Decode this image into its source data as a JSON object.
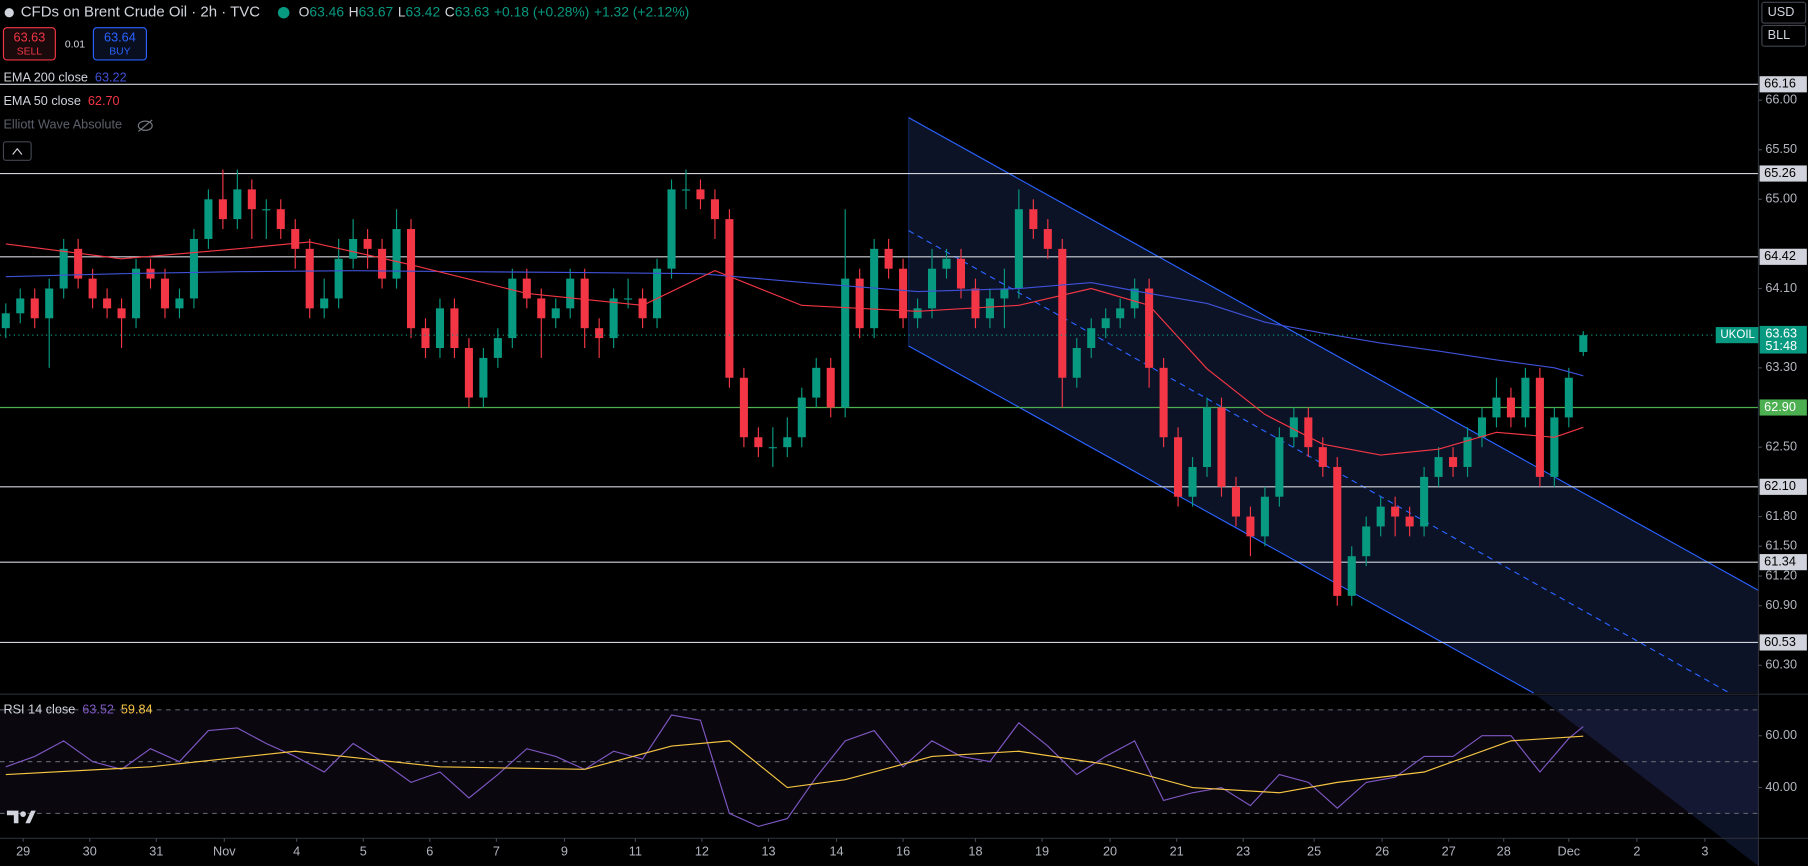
{
  "header": {
    "title": "CFDs on Brent Crude Oil · 2h · TVC",
    "ohlc": [
      {
        "k": "O",
        "v": "63.46"
      },
      {
        "k": "H",
        "v": "63.67"
      },
      {
        "k": "L",
        "v": "63.42"
      },
      {
        "k": "C",
        "v": "63.63"
      }
    ],
    "change": "+0.18 (+0.28%)",
    "change_period": "+1.32 (+2.12%)",
    "sell_price": "63.63",
    "sell": "SELL",
    "spread": "0.01",
    "buy_price": "63.64",
    "buy": "BUY",
    "indicators": [
      {
        "name": "EMA 200 close",
        "value": "63.22",
        "color": "#3f51d8"
      },
      {
        "name": "EMA 50 close",
        "value": "62.70",
        "color": "#f23645"
      },
      {
        "name": "Elliott Wave Absolute"
      }
    ],
    "currency": "USD",
    "unit": "BLL",
    "symbol": "UKOIL",
    "countdown": "51:48"
  },
  "chart_data": [
    {
      "type": "candlestick",
      "title": "CFDs on Brent Crude Oil",
      "up_color": "#089981",
      "down_color": "#f23645",
      "xlim": [
        -0.4,
        121.1
      ],
      "ylim": [
        60.02,
        67.01
      ],
      "yticks": [
        {
          "value": 66,
          "label": "66.00"
        },
        {
          "value": 65.5,
          "label": "65.50"
        },
        {
          "value": 65,
          "label": "65.00"
        },
        {
          "value": 64.1,
          "label": "64.10"
        },
        {
          "value": 63.3,
          "label": "63.30"
        },
        {
          "value": 62.5,
          "label": "62.50"
        },
        {
          "value": 61.8,
          "label": "61.80"
        },
        {
          "value": 61.5,
          "label": "61.50"
        },
        {
          "value": 61.2,
          "label": "61.20"
        },
        {
          "value": 60.9,
          "label": "60.90"
        },
        {
          "value": 60.3,
          "label": "60.30"
        }
      ],
      "xticks": [
        {
          "value": 1.2,
          "label": "29"
        },
        {
          "value": 5.8,
          "label": "30"
        },
        {
          "value": 10.4,
          "label": "31"
        },
        {
          "value": 15.1,
          "label": "Nov"
        },
        {
          "value": 20.1,
          "label": "4"
        },
        {
          "value": 24.7,
          "label": "5"
        },
        {
          "value": 29.3,
          "label": "6"
        },
        {
          "value": 33.9,
          "label": "7"
        },
        {
          "value": 38.6,
          "label": "9"
        },
        {
          "value": 43.5,
          "label": "11"
        },
        {
          "value": 48.1,
          "label": "12"
        },
        {
          "value": 52.7,
          "label": "13"
        },
        {
          "value": 57.4,
          "label": "14"
        },
        {
          "value": 62,
          "label": "16"
        },
        {
          "value": 67,
          "label": "18"
        },
        {
          "value": 71.6,
          "label": "19"
        },
        {
          "value": 76.3,
          "label": "20"
        },
        {
          "value": 80.9,
          "label": "21"
        },
        {
          "value": 85.5,
          "label": "23"
        },
        {
          "value": 90.4,
          "label": "25"
        },
        {
          "value": 95.1,
          "label": "26"
        },
        {
          "value": 99.7,
          "label": "27"
        },
        {
          "value": 103.5,
          "label": "28"
        },
        {
          "value": 108,
          "label": "Dec"
        },
        {
          "value": 112.7,
          "label": "2"
        },
        {
          "value": 117.4,
          "label": "3"
        }
      ],
      "levels": [
        66.16,
        65.26,
        64.42,
        {
          "value": 62.9,
          "label": "62.90"
        },
        {
          "value": 62.1,
          "label": "62.10"
        },
        61.34,
        60.53
      ],
      "level_colors": [
        "#d1d4dc",
        "#d1d4dc",
        "#d1d4dc",
        "#4caf50",
        "#d1d4dc",
        "#d1d4dc",
        "#d1d4dc"
      ],
      "last_price": 63.63,
      "open": [
        63.7,
        63.85,
        64.0,
        63.8,
        64.1,
        64.5,
        64.2,
        64.0,
        63.9,
        63.8,
        64.3,
        64.2,
        63.9,
        64.0,
        64.6,
        65.0,
        64.8,
        65.1,
        64.9,
        64.9,
        64.7,
        64.5,
        63.9,
        64.0,
        64.4,
        64.6,
        64.5,
        64.2,
        64.7,
        63.7,
        63.5,
        63.9,
        63.5,
        63.0,
        63.4,
        63.6,
        64.2,
        64.0,
        63.8,
        63.9,
        64.2,
        63.7,
        63.6,
        64.0,
        64.0,
        63.8,
        64.3,
        65.1,
        65.1,
        65.0,
        64.8,
        63.2,
        62.6,
        62.5,
        62.5,
        62.6,
        63.0,
        63.3,
        62.9,
        64.2,
        63.7,
        64.5,
        64.3,
        63.8,
        63.9,
        64.3,
        64.4,
        64.1,
        63.8,
        64.0,
        64.1,
        64.9,
        64.7,
        64.5,
        63.2,
        63.5,
        63.7,
        63.8,
        63.9,
        64.1,
        63.3,
        62.6,
        62.0,
        62.3,
        62.9,
        62.1,
        61.8,
        61.6,
        62.0,
        62.6,
        62.8,
        62.5,
        62.3,
        61.0,
        61.4,
        61.7,
        61.9,
        61.8,
        61.7,
        62.2,
        62.4,
        62.3,
        62.6,
        62.8,
        63.0,
        62.8,
        63.2,
        62.2,
        62.8,
        63.46
      ],
      "high": [
        63.95,
        64.1,
        64.1,
        64.2,
        64.6,
        64.6,
        64.3,
        64.1,
        64.0,
        64.4,
        64.4,
        64.3,
        64.1,
        64.7,
        65.1,
        65.3,
        65.3,
        65.2,
        65.0,
        65.0,
        64.8,
        64.6,
        64.2,
        64.6,
        64.8,
        64.7,
        64.6,
        64.9,
        64.8,
        63.8,
        64.0,
        64.0,
        63.6,
        63.5,
        63.7,
        64.3,
        64.3,
        64.1,
        64.0,
        64.3,
        64.3,
        63.8,
        64.1,
        64.2,
        64.1,
        64.4,
        65.2,
        65.3,
        65.2,
        65.1,
        64.9,
        63.3,
        62.7,
        62.7,
        62.8,
        63.1,
        63.4,
        63.4,
        64.9,
        64.3,
        64.6,
        64.6,
        64.4,
        64.0,
        64.5,
        64.5,
        64.5,
        64.2,
        64.1,
        64.3,
        65.1,
        65.0,
        64.8,
        64.6,
        63.6,
        63.8,
        63.9,
        64.0,
        64.2,
        64.2,
        63.4,
        62.7,
        62.4,
        63.0,
        63.0,
        62.2,
        61.9,
        62.1,
        62.7,
        62.9,
        62.9,
        62.6,
        62.4,
        61.5,
        61.8,
        62.0,
        62.0,
        61.9,
        62.3,
        62.5,
        62.5,
        62.7,
        62.9,
        63.2,
        63.1,
        63.3,
        63.3,
        62.9,
        63.3,
        63.67
      ],
      "low": [
        63.6,
        63.75,
        63.7,
        63.3,
        64.0,
        64.1,
        63.9,
        63.8,
        63.5,
        63.7,
        64.1,
        63.8,
        63.8,
        63.9,
        64.5,
        64.7,
        64.7,
        64.6,
        64.6,
        64.6,
        64.3,
        63.8,
        63.8,
        63.9,
        64.3,
        64.3,
        64.1,
        64.1,
        63.6,
        63.4,
        63.4,
        63.4,
        62.9,
        62.9,
        63.3,
        63.5,
        63.9,
        63.4,
        63.7,
        63.8,
        63.5,
        63.4,
        63.5,
        63.9,
        63.7,
        63.7,
        64.2,
        64.9,
        64.9,
        64.6,
        63.1,
        62.5,
        62.4,
        62.3,
        62.4,
        62.5,
        62.9,
        62.8,
        62.8,
        63.6,
        63.6,
        64.2,
        63.7,
        63.7,
        63.8,
        64.2,
        64.0,
        63.7,
        63.7,
        63.7,
        64.0,
        64.6,
        64.4,
        62.9,
        63.1,
        63.4,
        63.6,
        63.7,
        63.8,
        63.1,
        62.5,
        61.9,
        61.9,
        62.2,
        62.0,
        61.7,
        61.4,
        61.5,
        61.9,
        62.5,
        62.4,
        62.2,
        60.9,
        60.9,
        61.3,
        61.6,
        61.6,
        61.6,
        61.6,
        62.1,
        62.2,
        62.2,
        62.5,
        62.7,
        62.7,
        62.7,
        62.1,
        62.1,
        62.7,
        63.42
      ],
      "close": [
        63.85,
        64.0,
        63.8,
        64.1,
        64.5,
        64.2,
        64.0,
        63.9,
        63.8,
        64.3,
        64.2,
        63.9,
        64.0,
        64.6,
        65.0,
        64.8,
        65.1,
        64.9,
        64.9,
        64.7,
        64.5,
        63.9,
        64.0,
        64.4,
        64.6,
        64.5,
        64.2,
        64.7,
        63.7,
        63.5,
        63.9,
        63.5,
        63.0,
        63.4,
        63.6,
        64.2,
        64.0,
        63.8,
        63.9,
        64.2,
        63.7,
        63.6,
        64.0,
        64.0,
        63.8,
        64.3,
        65.1,
        65.1,
        65.0,
        64.8,
        63.2,
        62.6,
        62.5,
        62.5,
        62.6,
        63.0,
        63.3,
        62.9,
        64.2,
        63.7,
        64.5,
        64.3,
        63.8,
        63.9,
        64.3,
        64.4,
        64.1,
        63.8,
        64.0,
        64.1,
        64.9,
        64.7,
        64.5,
        63.2,
        63.5,
        63.7,
        63.8,
        63.9,
        64.1,
        63.3,
        62.6,
        62.0,
        62.3,
        62.9,
        62.1,
        61.8,
        61.6,
        62.0,
        62.6,
        62.8,
        62.5,
        62.3,
        61.0,
        61.4,
        61.7,
        61.9,
        61.8,
        61.7,
        62.2,
        62.4,
        62.3,
        62.6,
        62.8,
        63.0,
        62.8,
        63.2,
        62.2,
        62.8,
        63.2,
        63.63
      ],
      "series": [
        {
          "name": "EMA 200 close",
          "color": "#3f51d8",
          "x": [
            0,
            8,
            16,
            24,
            32,
            40,
            48,
            56,
            63,
            70,
            75,
            79,
            83,
            87,
            91,
            95,
            99,
            103,
            107,
            109
          ],
          "values": [
            64.22,
            64.25,
            64.27,
            64.28,
            64.27,
            64.26,
            64.25,
            64.15,
            64.07,
            64.1,
            64.16,
            64.05,
            63.95,
            63.76,
            63.65,
            63.55,
            63.47,
            63.38,
            63.3,
            63.22
          ]
        },
        {
          "name": "EMA 50 close",
          "color": "#f23645",
          "x": [
            0,
            8,
            16,
            21,
            28,
            36,
            44,
            49,
            55,
            63,
            70,
            75,
            79,
            83,
            87,
            91,
            95,
            99,
            103,
            107,
            109
          ],
          "values": [
            64.55,
            64.4,
            64.5,
            64.57,
            64.34,
            64.05,
            63.93,
            64.28,
            63.93,
            63.87,
            63.93,
            64.1,
            63.93,
            63.29,
            62.83,
            62.53,
            62.42,
            62.48,
            62.65,
            62.6,
            62.7
          ]
        }
      ]
    },
    {
      "type": "line",
      "title": "RSI 14 close",
      "ylim": [
        20.4,
        75.6
      ],
      "yticks": [
        {
          "value": 60,
          "label": "60.00"
        },
        {
          "value": 40,
          "label": "40.00"
        }
      ],
      "levels": [
        70,
        50,
        30
      ],
      "series": [
        {
          "name": "RSI",
          "color": "#7e57c2",
          "value_label": "63.52",
          "x": [
            0,
            2,
            4,
            6,
            8,
            10,
            12,
            14,
            16,
            18,
            20,
            22,
            24,
            26,
            28,
            30,
            32,
            34,
            36,
            38,
            40,
            42,
            44,
            46,
            48,
            50,
            52,
            54,
            56,
            58,
            60,
            62,
            64,
            66,
            68,
            70,
            72,
            74,
            76,
            78,
            80,
            82,
            84,
            86,
            88,
            90,
            92,
            94,
            96,
            98,
            100,
            102,
            104,
            106,
            108,
            109
          ],
          "values": [
            48,
            52,
            58,
            50,
            47,
            55,
            50,
            62,
            63,
            57,
            52,
            46,
            57,
            50,
            42,
            46,
            36,
            45,
            55,
            52,
            47,
            54,
            51,
            68,
            66,
            30,
            25,
            28,
            44,
            58,
            62,
            48,
            58,
            52,
            50,
            65,
            56,
            45,
            52,
            58,
            35,
            38,
            40,
            33,
            45,
            42,
            32,
            42,
            44,
            52,
            52,
            60,
            60,
            46,
            59,
            63.52
          ]
        },
        {
          "name": "RSI MA",
          "color": "#f5c542",
          "value_label": "59.84",
          "x": [
            0,
            10,
            20,
            30,
            40,
            46,
            50,
            54,
            58,
            64,
            70,
            76,
            82,
            88,
            92,
            98,
            104,
            109
          ],
          "values": [
            45,
            48,
            54,
            48,
            47,
            56,
            58,
            40,
            43,
            52,
            54,
            49,
            40,
            38,
            42,
            46,
            58,
            59.84
          ]
        }
      ]
    }
  ]
}
